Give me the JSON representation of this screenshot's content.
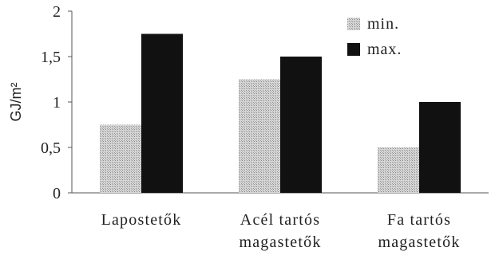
{
  "chart_data": {
    "type": "bar",
    "categories": [
      [
        "Lapostetők"
      ],
      [
        "Acél tartós",
        "magastetők"
      ],
      [
        "Fa tartós",
        "magastetők"
      ]
    ],
    "series": [
      {
        "name": "min.",
        "values": [
          0.75,
          1.25,
          0.5
        ]
      },
      {
        "name": "max.",
        "values": [
          1.75,
          1.5,
          1.0
        ]
      }
    ],
    "xlabel": "",
    "ylabel": "GJ/m²",
    "ylim": [
      0,
      2
    ],
    "yticks": [
      "0",
      "0,5",
      "1",
      "1,5",
      "2"
    ],
    "grid": false,
    "legend": "top-right",
    "colors": {
      "min": "#bdbdbd",
      "max": "#111111"
    }
  }
}
